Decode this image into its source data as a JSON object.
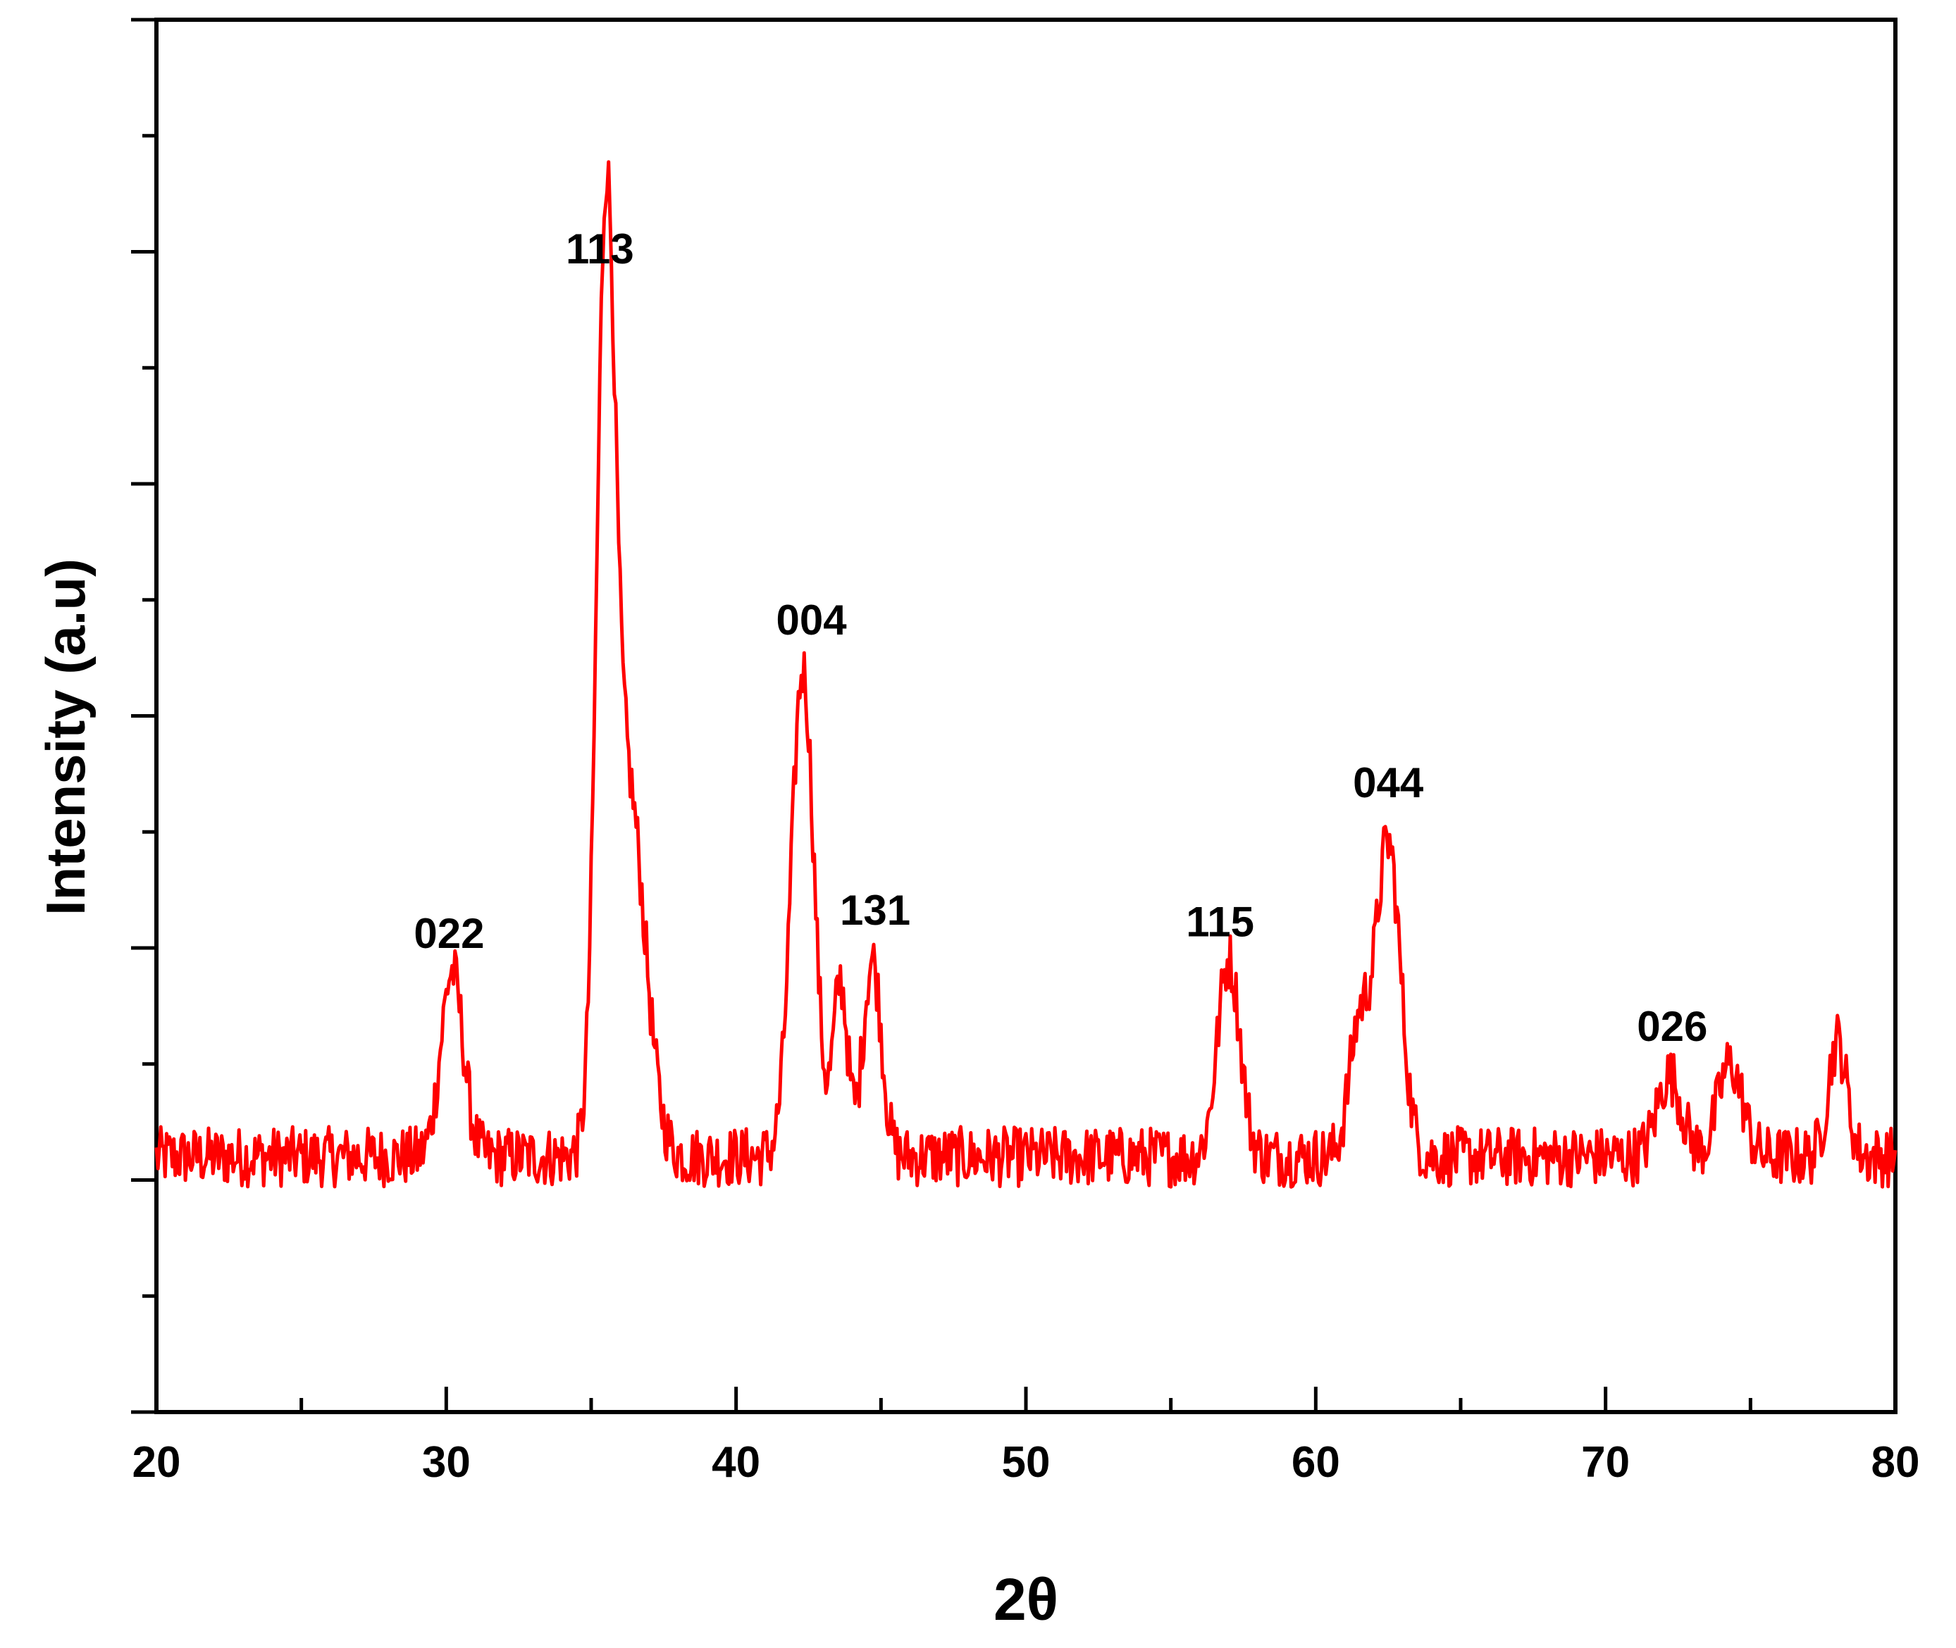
{
  "chart_data": {
    "type": "line",
    "title": "",
    "xlabel": "2θ",
    "ylabel": "Intensity (a.u)",
    "xlim": [
      20,
      80
    ],
    "ylim": [
      -1,
      5
    ],
    "x_ticks": [
      20,
      30,
      40,
      50,
      60,
      70,
      80
    ],
    "x_tick_labels": [
      "20",
      "30",
      "40",
      "50",
      "60",
      "70",
      "80"
    ],
    "y_tick_labels_visible": false,
    "grid": false,
    "legend": "none",
    "colors": {
      "series": "#ff0000",
      "axis": "#000000"
    },
    "series": [
      {
        "peaks": [
          {
            "x": 30.2,
            "height": 0.8,
            "width": 0.55
          },
          {
            "x": 35.5,
            "height": 3.65,
            "width": 0.45
          },
          {
            "x": 36.3,
            "height": 1.55,
            "width": 0.8
          },
          {
            "x": 42.3,
            "height": 2.1,
            "width": 0.55
          },
          {
            "x": 43.6,
            "height": 0.75,
            "width": 0.35
          },
          {
            "x": 44.7,
            "height": 0.85,
            "width": 0.45
          },
          {
            "x": 57.0,
            "height": 0.85,
            "width": 0.55
          },
          {
            "x": 61.5,
            "height": 0.55,
            "width": 0.5
          },
          {
            "x": 62.5,
            "height": 1.35,
            "width": 0.6
          },
          {
            "x": 72.2,
            "height": 0.35,
            "width": 0.6
          },
          {
            "x": 74.3,
            "height": 0.4,
            "width": 0.6
          },
          {
            "x": 78.0,
            "height": 0.5,
            "width": 0.45
          }
        ],
        "baseline": 0.1,
        "noise": 0.13,
        "step": 0.05
      }
    ],
    "annotations": [
      {
        "text": "022",
        "x": 30.1,
        "y": 1.0
      },
      {
        "text": "113",
        "x": 35.3,
        "y": 3.95
      },
      {
        "text": "004",
        "x": 42.6,
        "y": 2.35
      },
      {
        "text": "131",
        "x": 44.8,
        "y": 1.1
      },
      {
        "text": "115",
        "x": 56.7,
        "y": 1.05
      },
      {
        "text": "044",
        "x": 62.5,
        "y": 1.65
      },
      {
        "text": "026",
        "x": 72.3,
        "y": 0.6
      }
    ]
  }
}
